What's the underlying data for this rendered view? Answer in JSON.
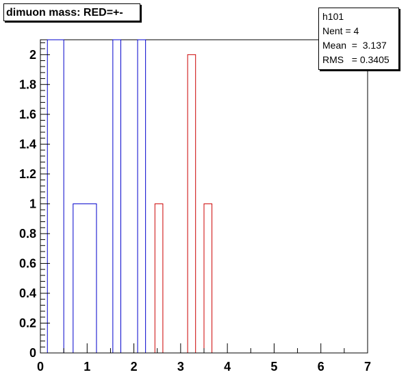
{
  "title": "dimuon mass: RED=+-",
  "stats": {
    "name": "h101",
    "lines": [
      "Nent = 4",
      "Mean  =  3.137",
      "RMS   = 0.3405"
    ]
  },
  "colors": {
    "series_blue": "#0000cc",
    "series_red": "#cc0000",
    "axis": "#000000"
  },
  "chart_data": {
    "type": "bar",
    "title": "dimuon mass: RED=+-",
    "xlabel": "",
    "ylabel": "",
    "xlim": [
      0,
      7
    ],
    "ylim": [
      0,
      2.1
    ],
    "grid": false,
    "x_ticks": [
      "0",
      "1",
      "2",
      "3",
      "4",
      "5",
      "6",
      "7"
    ],
    "y_ticks": [
      "0",
      "0.2",
      "0.4",
      "0.6",
      "0.8",
      "1",
      "1.2",
      "1.4",
      "1.6",
      "1.8",
      "2"
    ],
    "series": [
      {
        "color": "blue",
        "bins": [
          {
            "x0": 0.15,
            "x1": 0.5,
            "value": 2.1
          },
          {
            "x0": 0.7,
            "x1": 1.2,
            "value": 1
          },
          {
            "x0": 1.55,
            "x1": 1.72,
            "value": 2.1
          },
          {
            "x0": 2.08,
            "x1": 2.25,
            "value": 2.1
          }
        ]
      },
      {
        "color": "red",
        "bins": [
          {
            "x0": 2.45,
            "x1": 2.62,
            "value": 1
          },
          {
            "x0": 3.15,
            "x1": 3.32,
            "value": 2
          },
          {
            "x0": 3.5,
            "x1": 3.67,
            "value": 1
          }
        ]
      }
    ]
  }
}
